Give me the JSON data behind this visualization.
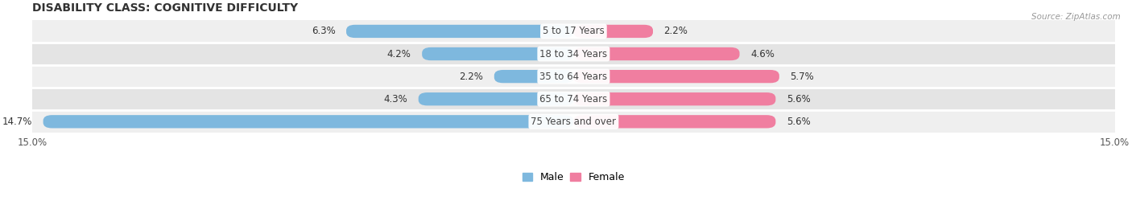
{
  "title": "DISABILITY CLASS: COGNITIVE DIFFICULTY",
  "source": "Source: ZipAtlas.com",
  "categories": [
    "5 to 17 Years",
    "18 to 34 Years",
    "35 to 64 Years",
    "65 to 74 Years",
    "75 Years and over"
  ],
  "male_values": [
    6.3,
    4.2,
    2.2,
    4.3,
    14.7
  ],
  "female_values": [
    2.2,
    4.6,
    5.7,
    5.6,
    5.6
  ],
  "xlim": 15.0,
  "male_color": "#7eb8de",
  "female_color": "#f07ea0",
  "row_bg_color_even": "#efefef",
  "row_bg_color_odd": "#e4e4e4",
  "title_fontsize": 10,
  "label_fontsize": 8.5,
  "tick_fontsize": 8.5,
  "bar_height": 0.58,
  "center_label_color": "#444444",
  "value_label_color": "#333333",
  "legend_fontsize": 9
}
